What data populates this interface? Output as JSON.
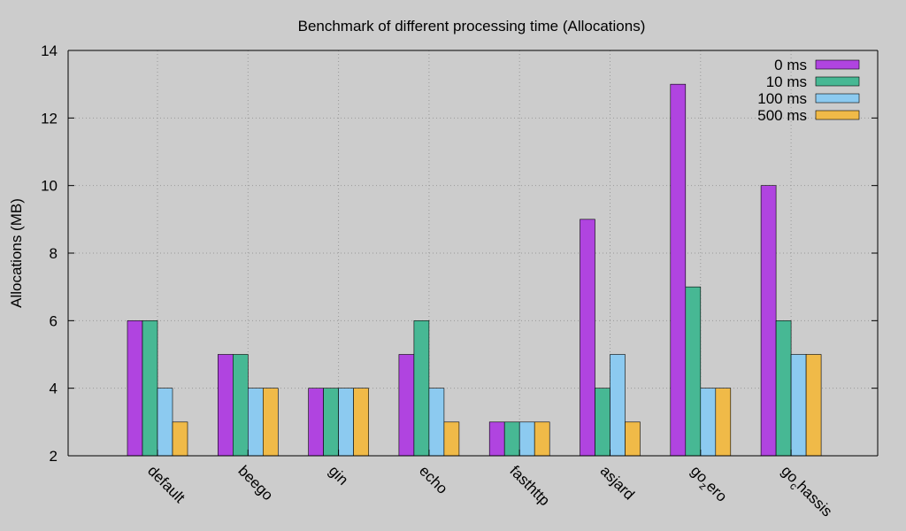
{
  "chart_data": {
    "type": "bar",
    "title": "Benchmark of different processing time (Allocations)",
    "xlabel": "",
    "ylabel": "Allocations (MB)",
    "ylim": [
      2,
      14
    ],
    "yticks": [
      2,
      4,
      6,
      8,
      10,
      12,
      14
    ],
    "grid": true,
    "legend_position": "top-right",
    "categories": [
      "default",
      "beego",
      "gin",
      "echo",
      "fasthttp",
      "asjard",
      "go_zero",
      "go_chassis"
    ],
    "category_labels": [
      {
        "main": "default",
        "sub": ""
      },
      {
        "main": "beego",
        "sub": ""
      },
      {
        "main": "gin",
        "sub": ""
      },
      {
        "main": "echo",
        "sub": ""
      },
      {
        "main": "fasthttp",
        "sub": ""
      },
      {
        "main": "asjard",
        "sub": ""
      },
      {
        "main": "go",
        "sub": "z",
        "rest": "ero"
      },
      {
        "main": "go",
        "sub": "c",
        "rest": "hassis"
      }
    ],
    "series": [
      {
        "name": "0 ms",
        "color": "#b044e0",
        "values": [
          6,
          5,
          4,
          5,
          3,
          9,
          13,
          10
        ]
      },
      {
        "name": "10 ms",
        "color": "#47b894",
        "values": [
          6,
          5,
          4,
          6,
          3,
          4,
          7,
          6
        ]
      },
      {
        "name": "100 ms",
        "color": "#8ccaf0",
        "values": [
          4,
          4,
          4,
          4,
          3,
          5,
          4,
          5
        ]
      },
      {
        "name": "500 ms",
        "color": "#f0ba48",
        "values": [
          3,
          4,
          4,
          3,
          3,
          3,
          4,
          5
        ]
      }
    ]
  }
}
